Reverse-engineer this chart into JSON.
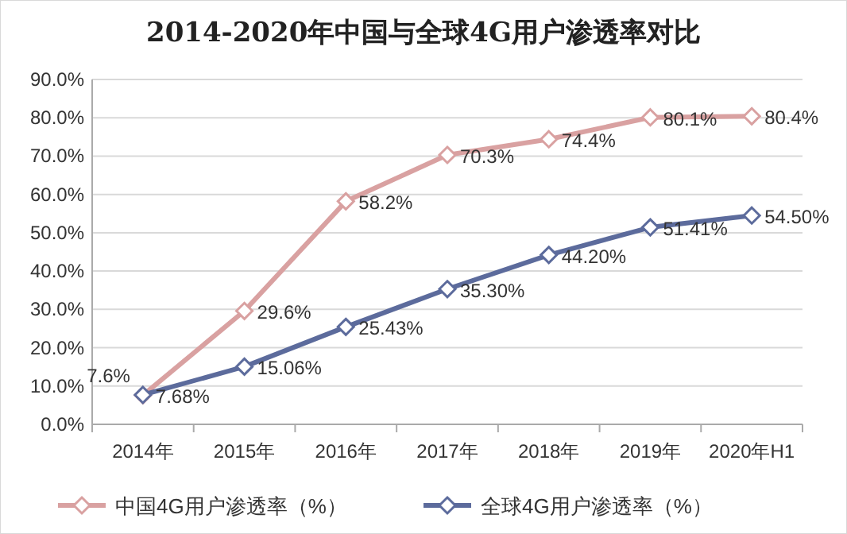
{
  "chart_data": {
    "type": "line",
    "title": "2014-2020年中国与全球4G用户渗透率对比",
    "categories": [
      "2014年",
      "2015年",
      "2016年",
      "2017年",
      "2018年",
      "2019年",
      "2020年H1"
    ],
    "series": [
      {
        "name": "中国4G用户渗透率（%）",
        "color": "#d9a1a1",
        "values": [
          7.6,
          29.6,
          58.2,
          70.3,
          74.4,
          80.1,
          80.4
        ],
        "value_labels": [
          "7.6%",
          "29.6%",
          "58.2%",
          "70.3%",
          "74.4%",
          "80.1%",
          "80.4%"
        ]
      },
      {
        "name": "全球4G用户渗透率（%）",
        "color": "#5c6b9c",
        "values": [
          7.68,
          15.06,
          25.43,
          35.3,
          44.2,
          51.41,
          54.5
        ],
        "value_labels": [
          "7.68%",
          "15.06%",
          "25.43%",
          "35.30%",
          "44.20%",
          "51.41%",
          "54.50%"
        ]
      }
    ],
    "ylim": [
      0,
      90
    ],
    "yticks": [
      {
        "value": 0,
        "label": "0.0%"
      },
      {
        "value": 10,
        "label": "10.0%"
      },
      {
        "value": 20,
        "label": "20.0%"
      },
      {
        "value": 30,
        "label": "30.0%"
      },
      {
        "value": 40,
        "label": "40.0%"
      },
      {
        "value": 50,
        "label": "50.0%"
      },
      {
        "value": 60,
        "label": "60.0%"
      },
      {
        "value": 70,
        "label": "70.0%"
      },
      {
        "value": 80,
        "label": "80.0%"
      },
      {
        "value": 90,
        "label": "90.0%"
      }
    ],
    "grid": "y",
    "legend": "bottom",
    "marker": "diamond",
    "line_style": "solid"
  }
}
